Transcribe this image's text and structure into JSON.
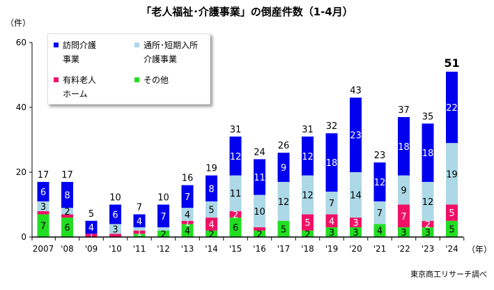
{
  "chart_data": {
    "type": "bar",
    "stacked": true,
    "title": "「老人福祉･介護事業」の倒産件数（1-4月）",
    "ylabel": "（件）",
    "xlabel": "（年）",
    "source": "東京商工リサーチ調べ",
    "ylim": [
      0,
      60
    ],
    "yticks": [
      "0",
      "20",
      "40",
      "60"
    ],
    "categories": [
      "2007",
      "'08",
      "'09",
      "'10",
      "'11",
      "'12",
      "'13",
      "'14",
      "'15",
      "'16",
      "'17",
      "'18",
      "'19",
      "'20",
      "'21",
      "'22",
      "'23",
      "'24"
    ],
    "totals": [
      17,
      17,
      5,
      10,
      7,
      10,
      16,
      19,
      31,
      24,
      26,
      31,
      32,
      43,
      23,
      37,
      35,
      51
    ],
    "legend_placement": "top-left",
    "series": [
      {
        "name": "その他",
        "color": "#22dd22",
        "text_color": "#000000",
        "values": [
          7,
          6,
          0,
          0,
          1,
          2,
          4,
          2,
          6,
          2,
          5,
          2,
          3,
          3,
          4,
          3,
          3,
          5
        ]
      },
      {
        "name": "有料老人ホーム",
        "color": "#ee1166",
        "text_color": "#ffffff",
        "values": [
          1,
          1,
          1,
          1,
          1,
          0,
          1,
          4,
          2,
          1,
          0,
          5,
          4,
          3,
          0,
          7,
          2,
          5
        ]
      },
      {
        "name": "通所･短期入所介護事業",
        "color": "#add8e6",
        "text_color": "#000000",
        "values": [
          3,
          2,
          0,
          3,
          1,
          1,
          4,
          5,
          11,
          10,
          12,
          12,
          7,
          14,
          7,
          9,
          12,
          19
        ]
      },
      {
        "name": "訪問介護事業",
        "color": "#0000ee",
        "text_color": "#ffffff",
        "values": [
          6,
          8,
          4,
          6,
          4,
          7,
          7,
          8,
          12,
          11,
          9,
          12,
          18,
          23,
          12,
          18,
          18,
          22
        ]
      }
    ]
  },
  "legend": {
    "items": [
      {
        "line1": "訪問介護",
        "line2": "事業",
        "color": "#0000ee"
      },
      {
        "line1": "通所･短期入所",
        "line2": "介護事業",
        "color": "#add8e6"
      },
      {
        "line1": "有料老人",
        "line2": "ホーム",
        "color": "#ee1166"
      },
      {
        "line1": "その他",
        "line2": "",
        "color": "#22dd22"
      }
    ]
  }
}
